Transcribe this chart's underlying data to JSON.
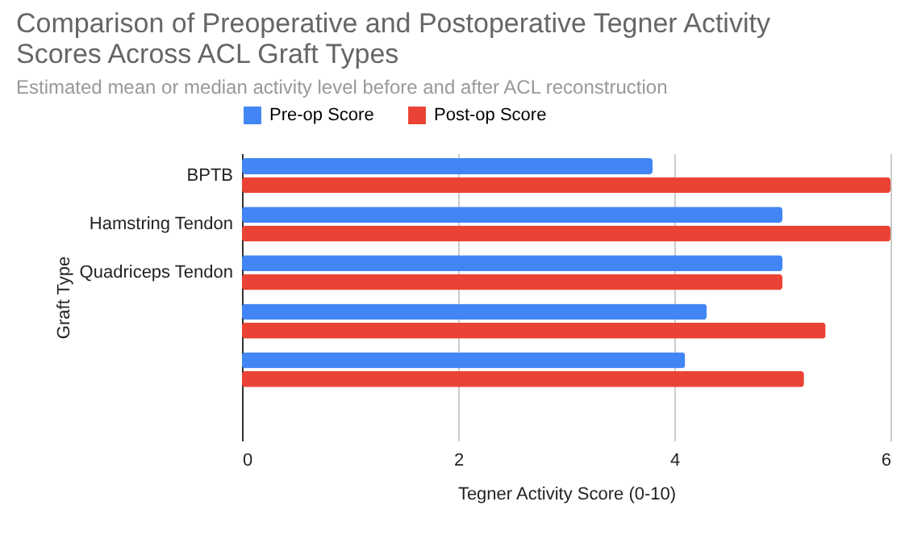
{
  "chart_data": {
    "type": "bar",
    "orientation": "horizontal",
    "title": "Comparison of Preoperative and Postoperative Tegner Activity Scores Across ACL Graft Types",
    "subtitle": "Estimated mean or median activity level before and after ACL reconstruction",
    "xlabel": "Tegner Activity Score (0-10)",
    "ylabel": "Graft Type",
    "categories": [
      "BPTB",
      "Hamstring Tendon",
      "Quadriceps Tendon",
      null,
      null,
      null
    ],
    "series": [
      {
        "name": "Pre-op Score",
        "color": "#4285f4",
        "values": [
          3.8,
          5.0,
          5.0,
          4.3,
          4.1,
          null
        ]
      },
      {
        "name": "Post-op Score",
        "color": "#ea4335",
        "values": [
          6.0,
          6.0,
          5.0,
          5.4,
          5.2,
          null
        ]
      }
    ],
    "xlim": [
      0,
      6
    ],
    "xticks": [
      0,
      2,
      4,
      6
    ],
    "grid": "x",
    "legend": "top"
  }
}
